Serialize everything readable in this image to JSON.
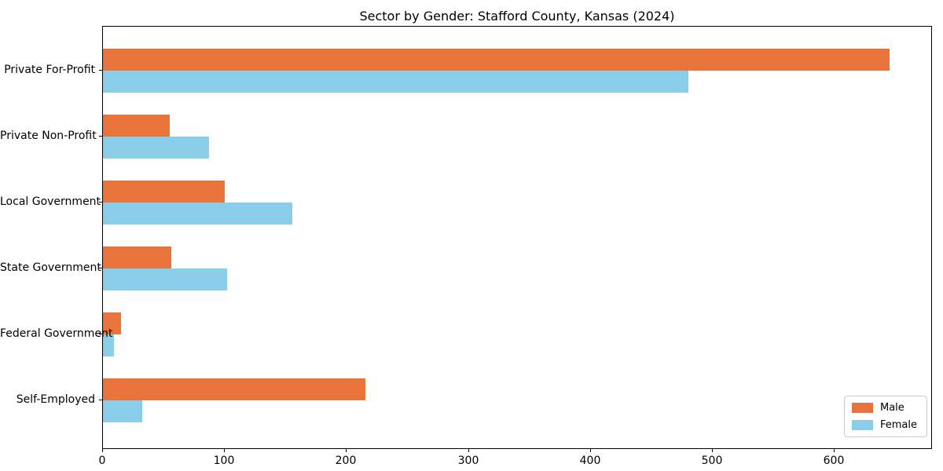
{
  "chart_data": {
    "type": "bar",
    "orientation": "horizontal",
    "title": "Sector by Gender: Stafford County, Kansas (2024)",
    "xlabel": "",
    "ylabel": "",
    "categories": [
      "Private For-Profit",
      "Private Non-Profit",
      "Local Government",
      "State Government",
      "Federal Government",
      "Self-Employed"
    ],
    "series": [
      {
        "name": "Male",
        "color": "#e8743b",
        "values": [
          645,
          55,
          100,
          56,
          15,
          215
        ]
      },
      {
        "name": "Female",
        "color": "#89cde9",
        "values": [
          480,
          87,
          155,
          102,
          9,
          32
        ]
      }
    ],
    "xlim": [
      0,
      679
    ],
    "xticks": [
      0,
      100,
      200,
      300,
      400,
      500,
      600
    ],
    "grid": false,
    "legend_position": "lower right",
    "background_color": "#ffffff",
    "axis_color": "#000000"
  }
}
